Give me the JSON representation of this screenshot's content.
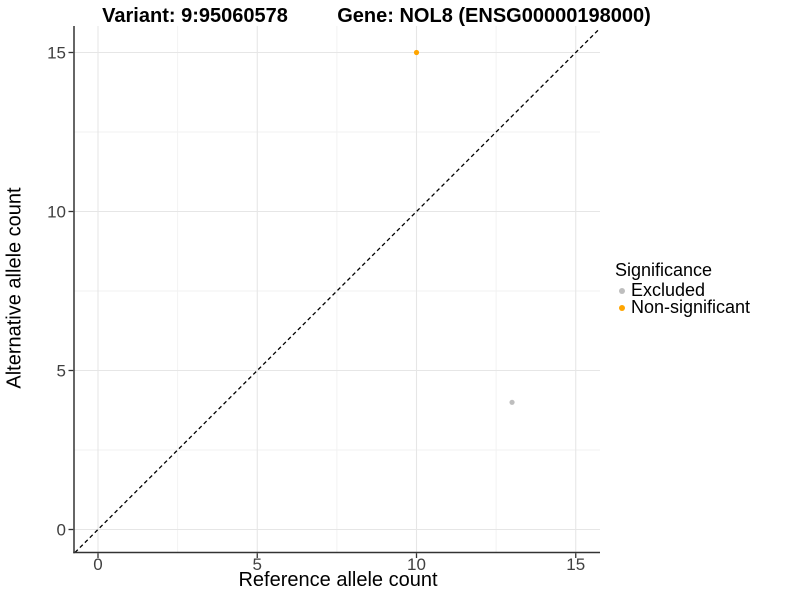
{
  "titles": {
    "variant": "Variant: 9:95060578",
    "gene": "Gene: NOL8 (ENSG00000198000)"
  },
  "axis": {
    "x": {
      "label": "Reference allele count"
    },
    "y": {
      "label": "Alternative allele count"
    }
  },
  "legend": {
    "title": "Significance",
    "items": [
      {
        "label": "Excluded",
        "color": "#BEBEBE"
      },
      {
        "label": "Non-significant",
        "color": "#FFA500"
      }
    ]
  },
  "colors": {
    "grid_major": "#E6E6E6",
    "grid_minor": "#F2F2F2",
    "axis_line": "#333333",
    "tick_text": "#404040",
    "reference_line": "#000000",
    "excluded_point": "#BEBEBE",
    "non_significant_point": "#FFA500"
  },
  "chart_data": {
    "type": "scatter",
    "title": "Variant: 9:95060578   Gene: NOL8 (ENSG00000198000)",
    "xlabel": "Reference allele count",
    "ylabel": "Alternative allele count",
    "xlim": [
      -0.8,
      15.8
    ],
    "ylim": [
      -0.75,
      15.8
    ],
    "x_ticks": [
      0,
      5,
      10,
      15
    ],
    "y_ticks": [
      0,
      5,
      10,
      15
    ],
    "x_minor_ticks": [
      2.5,
      7.5,
      12.5
    ],
    "y_minor_ticks": [
      2.5,
      7.5,
      12.5
    ],
    "grid": "major+minor",
    "legend_position": "right",
    "legend_title": "Significance",
    "series": [
      {
        "name": "Excluded",
        "color": "#BEBEBE",
        "points": [
          {
            "x": 13,
            "y": 4
          }
        ]
      },
      {
        "name": "Non-significant",
        "color": "#FFA500",
        "points": [
          {
            "x": 10,
            "y": 15
          }
        ]
      }
    ],
    "reference_line": {
      "equation": "y = x",
      "style": "dashed",
      "color": "#000000"
    }
  }
}
